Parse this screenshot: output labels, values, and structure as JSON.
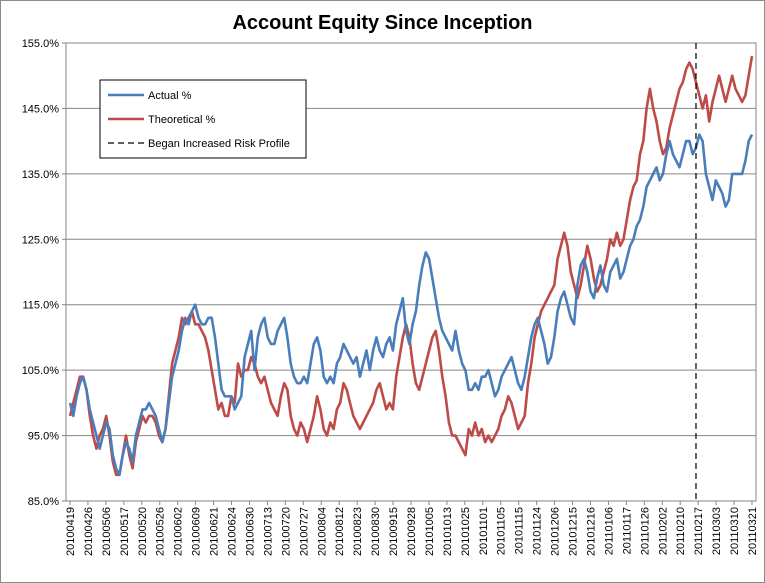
{
  "chart_data": {
    "type": "line",
    "title": "Account Equity Since Inception",
    "xlabel": "",
    "ylabel": "",
    "ylim": [
      85,
      155
    ],
    "y_ticks": [
      "85.0%",
      "95.0%",
      "105.0%",
      "115.0%",
      "125.0%",
      "135.0%",
      "145.0%",
      "155.0%"
    ],
    "x_tick_labels": [
      "20100419",
      "20100426",
      "20100506",
      "20100517",
      "20100520",
      "20100526",
      "20100602",
      "20100609",
      "20100621",
      "20100624",
      "20100630",
      "20100713",
      "20100720",
      "20100727",
      "20100804",
      "20100812",
      "20100823",
      "20100830",
      "20100915",
      "20100928",
      "20101005",
      "20101013",
      "20101025",
      "20101101",
      "20101105",
      "20101115",
      "20101124",
      "20101206",
      "20101215",
      "20101216",
      "20110106",
      "20110117",
      "20110126",
      "20110202",
      "20110210",
      "20110217",
      "20110303",
      "20110310",
      "20110321"
    ],
    "series": [
      {
        "name": "Actual %",
        "color": "#4a7ebb",
        "values": [
          100,
          98,
          101,
          103,
          104,
          102,
          99,
          97,
          95,
          93,
          95,
          97,
          96,
          92,
          90,
          89,
          92,
          94,
          93,
          91,
          95,
          97,
          99,
          99,
          100,
          99,
          98,
          96,
          94,
          96,
          100,
          104,
          106,
          108,
          111,
          113,
          112,
          114,
          115,
          113,
          112,
          112,
          113,
          113,
          110,
          106,
          102,
          101,
          101,
          101,
          99,
          100,
          101,
          107,
          109,
          111,
          105,
          110,
          112,
          113,
          110,
          109,
          109,
          111,
          112,
          113,
          110,
          106,
          104,
          103,
          103,
          104,
          103,
          106,
          109,
          110,
          108,
          104,
          103,
          104,
          103,
          106,
          107,
          109,
          108,
          107,
          106,
          107,
          104,
          106,
          108,
          105,
          108,
          110,
          108,
          107,
          109,
          110,
          108,
          112,
          114,
          116,
          111,
          109,
          112,
          114,
          118,
          121,
          123,
          122,
          119,
          116,
          113,
          111,
          110,
          109,
          108,
          111,
          108,
          106,
          105,
          102,
          102,
          103,
          102,
          104,
          104,
          105,
          103,
          101,
          102,
          104,
          105,
          106,
          107,
          105,
          103,
          102,
          104,
          107,
          110,
          112,
          113,
          111,
          109,
          106,
          107,
          110,
          114,
          116,
          117,
          115,
          113,
          112,
          118,
          121,
          122,
          120,
          117,
          116,
          119,
          121,
          118,
          117,
          120,
          121,
          122,
          119,
          120,
          122,
          124,
          125,
          127,
          128,
          130,
          133,
          134,
          135,
          136,
          134,
          135,
          138,
          140,
          138,
          137,
          136,
          138,
          140,
          140,
          138,
          139,
          141,
          140,
          135,
          133,
          131,
          134,
          133,
          132,
          130,
          131,
          135,
          135,
          135,
          135,
          137,
          140,
          141
        ]
      },
      {
        "name": "Theoretical %",
        "color": "#be4b48",
        "values": [
          98,
          100,
          102,
          104,
          104,
          102,
          98,
          95,
          93,
          95,
          96,
          98,
          95,
          91,
          89,
          89,
          92,
          95,
          92,
          90,
          94,
          96,
          98,
          97,
          98,
          98,
          97,
          95,
          94,
          96,
          101,
          106,
          108,
          110,
          113,
          112,
          113,
          114,
          112,
          112,
          111,
          110,
          108,
          105,
          102,
          99,
          100,
          98,
          98,
          101,
          100,
          106,
          104,
          105,
          105,
          107,
          106,
          104,
          103,
          104,
          102,
          100,
          99,
          98,
          101,
          103,
          102,
          98,
          96,
          95,
          97,
          96,
          94,
          96,
          98,
          101,
          99,
          96,
          95,
          97,
          96,
          99,
          100,
          103,
          102,
          100,
          98,
          97,
          96,
          97,
          98,
          99,
          100,
          102,
          103,
          101,
          99,
          100,
          99,
          104,
          107,
          110,
          112,
          110,
          106,
          103,
          102,
          104,
          106,
          108,
          110,
          111,
          108,
          104,
          101,
          97,
          95,
          95,
          94,
          93,
          92,
          96,
          95,
          97,
          95,
          96,
          94,
          95,
          94,
          95,
          96,
          98,
          99,
          101,
          100,
          98,
          96,
          97,
          98,
          103,
          106,
          110,
          112,
          114,
          115,
          116,
          117,
          118,
          122,
          124,
          126,
          124,
          120,
          118,
          116,
          118,
          121,
          124,
          122,
          119,
          117,
          118,
          120,
          122,
          125,
          124,
          126,
          124,
          125,
          128,
          131,
          133,
          134,
          138,
          140,
          145,
          148,
          145,
          143,
          140,
          138,
          139,
          142,
          144,
          146,
          148,
          149,
          151,
          152,
          151,
          149,
          147,
          145,
          147,
          143,
          146,
          148,
          150,
          148,
          146,
          148,
          150,
          148,
          147,
          146,
          147,
          150,
          153
        ]
      }
    ],
    "annotations": [
      {
        "type": "vline",
        "label": "Began Increased Risk Profile",
        "x_index": 190
      }
    ],
    "legend": {
      "placement": "top-left",
      "entries": [
        "Actual %",
        "Theoretical %",
        "Began Increased Risk Profile"
      ]
    },
    "grid": "horizontal"
  }
}
